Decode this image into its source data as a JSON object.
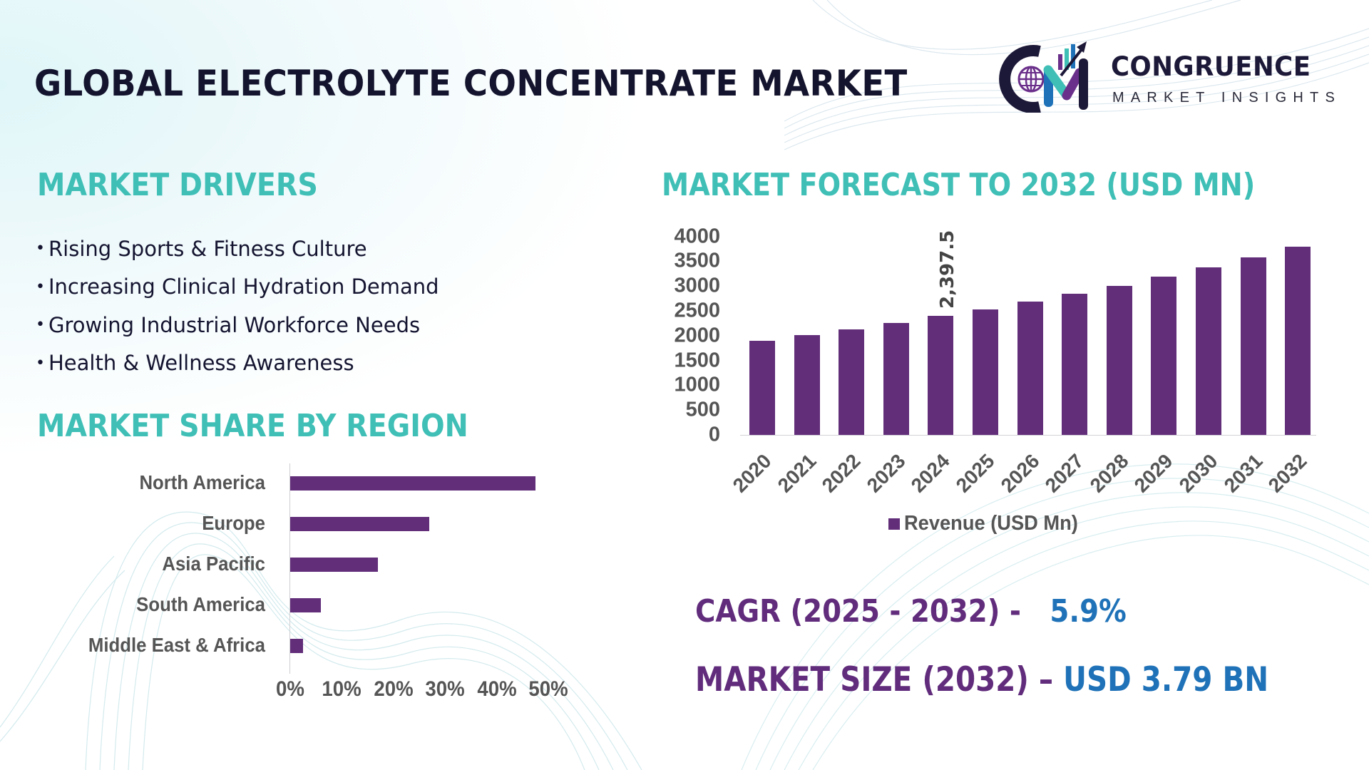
{
  "header": {
    "title": "GLOBAL ELECTROLYTE CONCENTRATE MARKET",
    "logo": {
      "name": "CONGRUENCE",
      "tagline": "MARKET INSIGHTS",
      "icon": "cm-globe-growth-arrow-logo-icon"
    }
  },
  "drivers": {
    "title": "MARKET DRIVERS",
    "bullet": "•",
    "items": [
      "Rising Sports & Fitness Culture",
      "Increasing Clinical Hydration Demand",
      "Growing Industrial Workforce Needs",
      "Health & Wellness Awareness"
    ]
  },
  "region": {
    "title": "MARKET SHARE BY REGION"
  },
  "forecast": {
    "title": "MARKET FORECAST TO 2032 (USD MN)"
  },
  "stats": {
    "cagr_label": "CAGR (2025 - 2032) - ",
    "cagr_value": "5.9%",
    "size_label": "MARKET SIZE (2032) – ",
    "size_value": "USD 3.79 BN"
  },
  "colors": {
    "bar": "#622e7a",
    "section_title": "#3fbfb6",
    "stat_label": "#612c7c",
    "stat_value": "#1f72b8",
    "title": "#14142e",
    "axis_text": "#555555"
  },
  "chart_data": [
    {
      "type": "bar",
      "orientation": "horizontal",
      "title": "MARKET SHARE BY REGION",
      "categories": [
        "North America",
        "Europe",
        "Asia Pacific",
        "South America",
        "Middle East & Africa"
      ],
      "values": [
        47.5,
        27,
        17,
        6,
        2.5
      ],
      "unit": "%",
      "xlabel": "",
      "ylabel": "",
      "xlim": [
        0,
        50
      ],
      "x_ticks": [
        "0%",
        "10%",
        "20%",
        "30%",
        "40%",
        "50%"
      ],
      "grid": false,
      "legend": null
    },
    {
      "type": "bar",
      "orientation": "vertical",
      "title": "MARKET FORECAST TO 2032 (USD MN)",
      "categories": [
        "2020",
        "2021",
        "2022",
        "2023",
        "2024",
        "2025",
        "2026",
        "2027",
        "2028",
        "2029",
        "2030",
        "2031",
        "2032"
      ],
      "series": [
        {
          "name": "Revenue (USD Mn)",
          "values": [
            1900,
            2012,
            2127,
            2256,
            2397.5,
            2529,
            2687,
            2845,
            3003,
            3190,
            3377,
            3578,
            3790
          ]
        }
      ],
      "data_labels": [
        {
          "category": "2024",
          "text": "2,397.5"
        }
      ],
      "xlabel": "",
      "ylabel": "",
      "ylim": [
        0,
        4000
      ],
      "y_ticks": [
        "0",
        "500",
        "1000",
        "1500",
        "2000",
        "2500",
        "3000",
        "3500",
        "4000"
      ],
      "grid": false,
      "legend": {
        "position": "bottom",
        "entries": [
          "Revenue (USD Mn)"
        ]
      }
    }
  ]
}
